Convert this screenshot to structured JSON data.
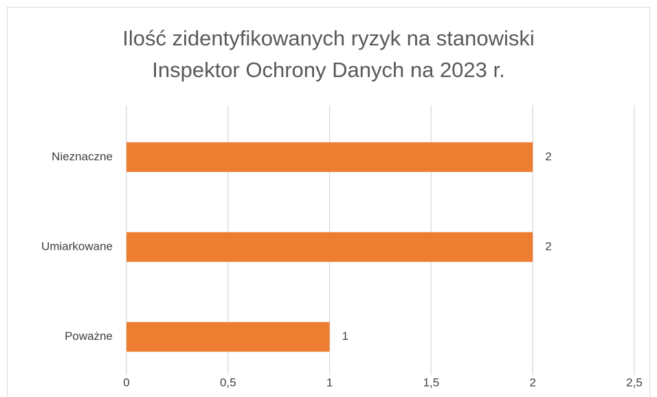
{
  "chart_data": {
    "type": "bar",
    "orientation": "horizontal",
    "title": [
      "Ilość zidentyfikowanych ryzyk na stanowiski",
      "Inspektor Ochrony Danych na 2023 r."
    ],
    "categories": [
      "Nieznaczne",
      "Umiarkowane",
      "Poważne"
    ],
    "values": [
      2,
      2,
      1
    ],
    "color": "#ed7d31",
    "xlim": [
      0,
      2.5
    ],
    "xticks": [
      0,
      {
        "value": 0.5,
        "label": "0,5"
      },
      1,
      {
        "value": 1.5,
        "label": "1,5"
      },
      2,
      {
        "value": 2.5,
        "label": "2,5"
      }
    ],
    "grid": true
  }
}
